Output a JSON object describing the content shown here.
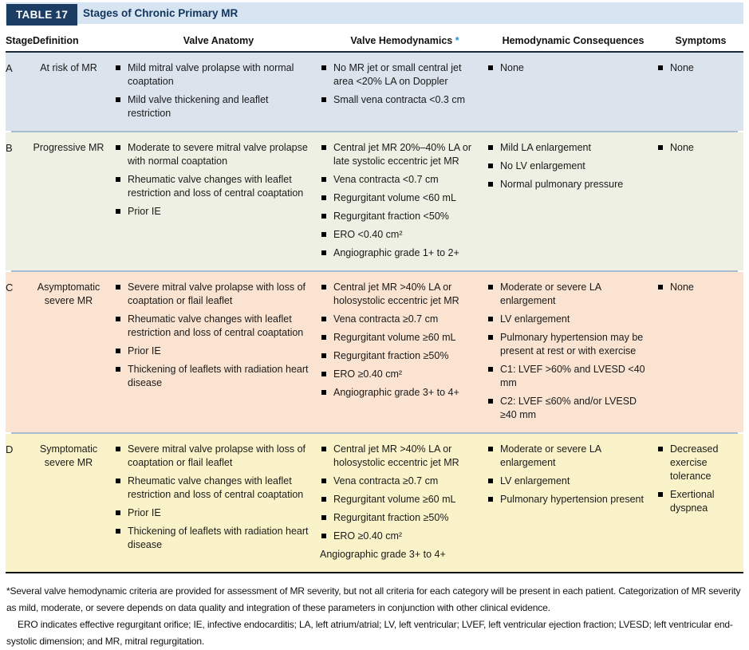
{
  "colors": {
    "navy": "#1b3d63",
    "title_bar_bg": "#d7e4f1",
    "asterisk_blue": "#2a93cd",
    "row_a_bg": "#dbe4ed",
    "row_b_bg": "#eef0e3",
    "row_c_bg": "#fae3d1",
    "row_d_bg": "#faf3ca"
  },
  "header": {
    "tag": "TABLE 17",
    "title": "Stages of Chronic Primary MR"
  },
  "columns": {
    "stage": "Stage",
    "definition": "Definition",
    "anatomy": "Valve Anatomy",
    "hemodynamics": "Valve Hemodynamics",
    "hemodynamics_asterisk": "*",
    "consequences": "Hemodynamic Consequences",
    "symptoms": "Symptoms"
  },
  "rows": [
    {
      "stage": "A",
      "definition": "At risk of MR",
      "anatomy": [
        "Mild mitral valve prolapse with normal coaptation",
        "Mild valve thickening and leaflet restriction"
      ],
      "hemodynamics": [
        "No MR jet or small central jet area <20% LA on Doppler",
        "Small vena contracta <0.3 cm"
      ],
      "consequences": [
        "None"
      ],
      "symptoms": [
        "None"
      ]
    },
    {
      "stage": "B",
      "definition": "Progressive MR",
      "anatomy": [
        "Moderate to severe mitral valve prolapse with normal coaptation",
        "Rheumatic valve changes with leaflet restriction and loss of central coaptation",
        "Prior IE"
      ],
      "hemodynamics": [
        "Central jet MR 20%–40% LA or late systolic eccentric jet MR",
        "Vena contracta <0.7 cm",
        "Regurgitant volume <60 mL",
        "Regurgitant fraction <50%",
        "ERO <0.40 cm²",
        "Angiographic grade 1+ to 2+"
      ],
      "consequences": [
        "Mild LA enlargement",
        "No LV enlargement",
        "Normal pulmonary pressure"
      ],
      "symptoms": [
        "None"
      ]
    },
    {
      "stage": "C",
      "definition": "Asymptomatic severe MR",
      "anatomy": [
        "Severe mitral valve prolapse with loss of coaptation or flail leaflet",
        "Rheumatic valve changes with leaflet restriction and loss of central coaptation",
        "Prior IE",
        "Thickening of leaflets with radiation heart disease"
      ],
      "hemodynamics": [
        "Central jet MR >40% LA or holosystolic eccentric jet MR",
        "Vena contracta ≥0.7 cm",
        "Regurgitant volume ≥60 mL",
        "Regurgitant fraction ≥50%",
        "ERO ≥0.40 cm²",
        "Angiographic grade 3+ to 4+"
      ],
      "consequences": [
        "Moderate or severe LA enlargement",
        "LV enlargement",
        "Pulmonary hypertension may be present at rest or with exercise",
        "C1: LVEF >60% and LVESD <40 mm",
        "C2: LVEF ≤60% and/or LVESD ≥40 mm"
      ],
      "symptoms": [
        "None"
      ]
    },
    {
      "stage": "D",
      "definition": "Symptomatic severe MR",
      "anatomy": [
        "Severe mitral valve prolapse with loss of coaptation or flail leaflet",
        "Rheumatic valve changes with leaflet restriction and loss of central coaptation",
        "Prior IE",
        "Thickening of leaflets with radiation heart disease"
      ],
      "hemodynamics": [
        "Central jet MR >40% LA or holosystolic eccentric jet MR",
        "Vena contracta ≥0.7 cm",
        "Regurgitant volume ≥60 mL",
        "Regurgitant fraction ≥50%",
        "ERO ≥0.40 cm²"
      ],
      "hemodynamics_unbulleted": "Angiographic grade 3+ to 4+",
      "consequences": [
        "Moderate or severe LA enlargement",
        "LV enlargement",
        "Pulmonary hypertension present"
      ],
      "symptoms": [
        "Decreased exercise tolerance",
        "Exertional dyspnea"
      ]
    }
  ],
  "footnotes": {
    "asterisk_note": "*Several valve hemodynamic criteria are provided for assessment of MR severity, but not all criteria for each category will be present in each patient. Categorization of MR severity as mild, moderate, or severe depends on data quality and integration of these parameters in conjunction with other clinical evidence.",
    "abbreviations": "ERO indicates effective regurgitant orifice; IE, infective endocarditis; LA, left atrium/atrial; LV, left ventricular; LVEF, left ventricular ejection fraction; LVESD; left ventricular end-systolic dimension; and MR, mitral regurgitation."
  }
}
